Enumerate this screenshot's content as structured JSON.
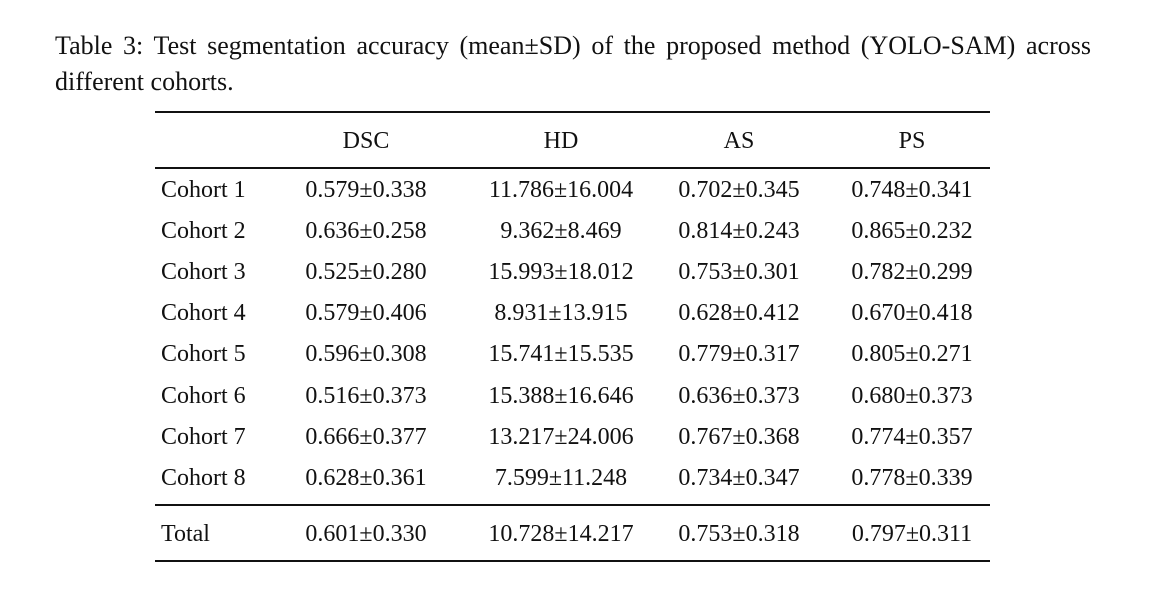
{
  "caption": "Table 3: Test segmentation accuracy (mean±SD) of the proposed method (YOLO-SAM) across different cohorts.",
  "table": {
    "header": [
      "DSC",
      "HD",
      "AS",
      "PS"
    ],
    "rows": [
      [
        "Cohort 1",
        "0.579±0.338",
        "11.786±16.004",
        "0.702±0.345",
        "0.748±0.341"
      ],
      [
        "Cohort 2",
        "0.636±0.258",
        "9.362±8.469",
        "0.814±0.243",
        "0.865±0.232"
      ],
      [
        "Cohort 3",
        "0.525±0.280",
        "15.993±18.012",
        "0.753±0.301",
        "0.782±0.299"
      ],
      [
        "Cohort 4",
        "0.579±0.406",
        "8.931±13.915",
        "0.628±0.412",
        "0.670±0.418"
      ],
      [
        "Cohort 5",
        "0.596±0.308",
        "15.741±15.535",
        "0.779±0.317",
        "0.805±0.271"
      ],
      [
        "Cohort 6",
        "0.516±0.373",
        "15.388±16.646",
        "0.636±0.373",
        "0.680±0.373"
      ],
      [
        "Cohort 7",
        "0.666±0.377",
        "13.217±24.006",
        "0.767±0.368",
        "0.774±0.357"
      ],
      [
        "Cohort 8",
        "0.628±0.361",
        "7.599±11.248",
        "0.734±0.347",
        "0.778±0.339"
      ]
    ],
    "total": [
      "Total",
      "0.601±0.330",
      "10.728±14.217",
      "0.753±0.318",
      "0.797±0.311"
    ]
  }
}
